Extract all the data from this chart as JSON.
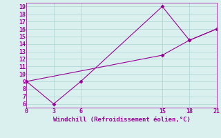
{
  "line1_x": [
    0,
    3,
    6,
    15,
    18,
    21
  ],
  "line1_y": [
    9,
    6,
    9,
    19,
    14.5,
    16
  ],
  "line2_x": [
    0,
    15,
    18,
    21
  ],
  "line2_y": [
    9,
    12.5,
    14.5,
    16
  ],
  "xlabel": "Windchill (Refroidissement éolien,°C)",
  "xlim": [
    0,
    21
  ],
  "ylim": [
    5.5,
    19.5
  ],
  "xticks": [
    0,
    3,
    6,
    15,
    18,
    21
  ],
  "yticks": [
    6,
    7,
    8,
    9,
    10,
    11,
    12,
    13,
    14,
    15,
    16,
    17,
    18,
    19
  ],
  "line_color": "#990099",
  "bg_color": "#daf0ee",
  "grid_color": "#b0d8d4"
}
